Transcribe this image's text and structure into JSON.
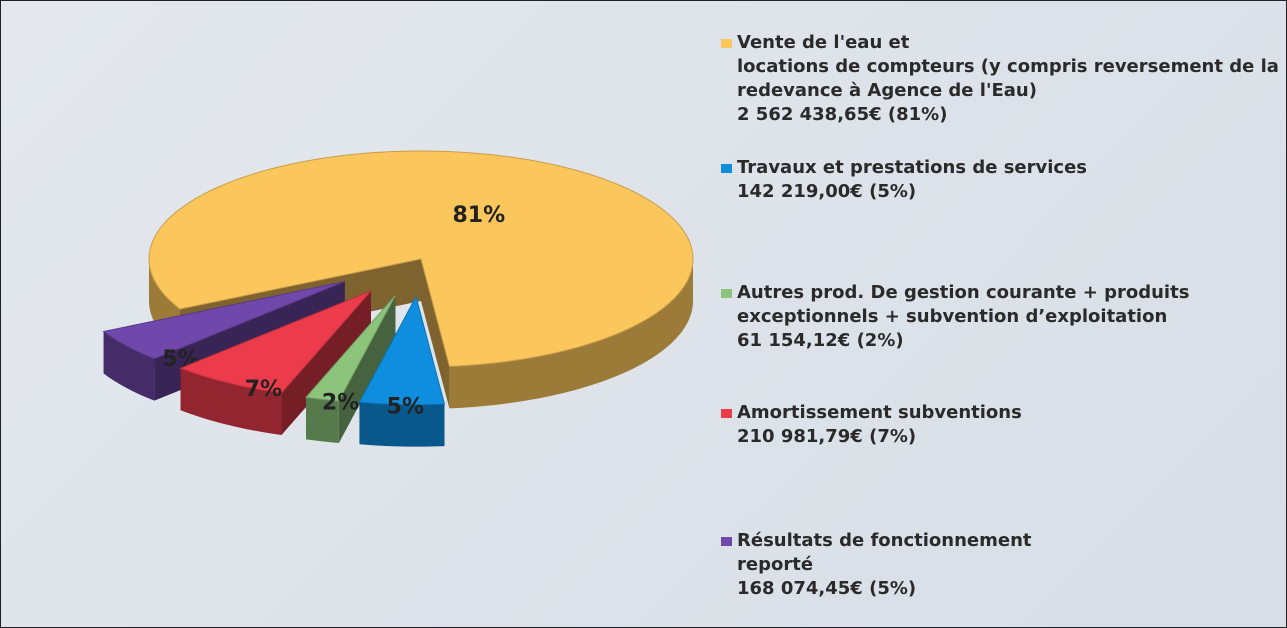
{
  "chart_data": {
    "type": "pie3d",
    "categories": [
      "Vente de l'eau et\nlocations de compteurs (y compris reversement de la redevance à Agence de l'Eau)",
      "Travaux et prestations de services",
      "Autres prod. De gestion courante + produits exceptionnels + subvention d’exploitation",
      "Amortissement subventions",
      "Résultats de fonctionnement\nreporté"
    ],
    "amounts": [
      "2 562 438,65€ (81%)",
      "142 219,00€ (5%)",
      "61 154,12€ (2%)",
      "210 981,79€ (7%)",
      "168 074,45€ (5%)"
    ],
    "values": [
      81,
      5,
      2,
      7,
      5
    ],
    "value_labels": [
      "81%",
      "5%",
      "2%",
      "7%",
      "5%"
    ],
    "colors": [
      "#fbc65c",
      "#0f8ee0",
      "#8cc47c",
      "#ec3b4b",
      "#7047aa"
    ]
  }
}
